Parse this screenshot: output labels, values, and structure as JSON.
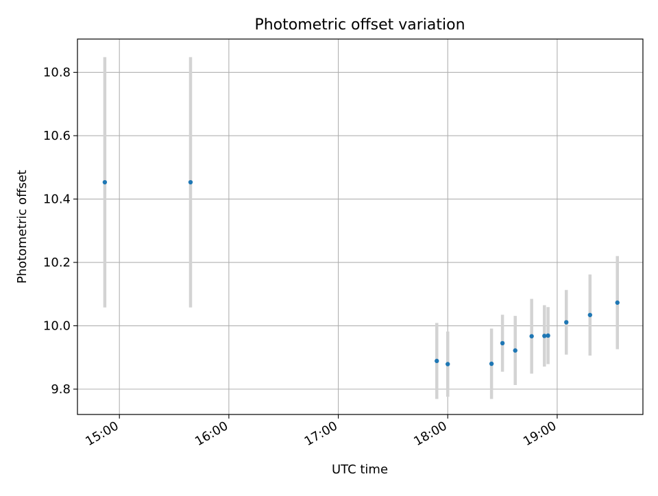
{
  "chart_data": {
    "type": "scatter",
    "title": "Photometric offset variation",
    "xlabel": "UTC time",
    "ylabel": "Photometric offset",
    "x_ticks": [
      "15:00",
      "16:00",
      "17:00",
      "18:00",
      "19:00"
    ],
    "y_ticks": [
      "9.8",
      "10.0",
      "10.2",
      "10.4",
      "10.6",
      "10.8"
    ],
    "x_range": [
      "14:37",
      "19:47"
    ],
    "y_range": [
      9.72,
      10.905
    ],
    "grid": true,
    "colors": {
      "marker": "#1f77b4",
      "errorbar": "#d3d3d3",
      "grid": "#b0b0b0"
    },
    "points": [
      {
        "time": "14:52",
        "y": 10.453,
        "yerr": 0.395
      },
      {
        "time": "15:39",
        "y": 10.453,
        "yerr": 0.395
      },
      {
        "time": "17:54",
        "y": 9.889,
        "yerr": 0.12
      },
      {
        "time": "18:00",
        "y": 9.879,
        "yerr": 0.103
      },
      {
        "time": "18:24",
        "y": 9.88,
        "yerr": 0.111
      },
      {
        "time": "18:30",
        "y": 9.945,
        "yerr": 0.09
      },
      {
        "time": "18:37",
        "y": 9.922,
        "yerr": 0.109
      },
      {
        "time": "18:46",
        "y": 9.967,
        "yerr": 0.118
      },
      {
        "time": "18:53",
        "y": 9.968,
        "yerr": 0.097
      },
      {
        "time": "18:55",
        "y": 9.969,
        "yerr": 0.09
      },
      {
        "time": "19:05",
        "y": 10.011,
        "yerr": 0.102
      },
      {
        "time": "19:18",
        "y": 10.034,
        "yerr": 0.128
      },
      {
        "time": "19:33",
        "y": 10.073,
        "yerr": 0.147
      }
    ]
  }
}
